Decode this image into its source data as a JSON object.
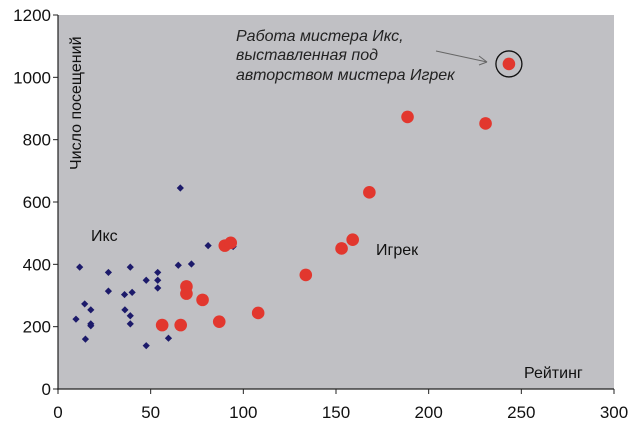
{
  "chart_data": {
    "type": "scatter",
    "xlabel": "Рейтинг",
    "ylabel": "Число посещений",
    "xlim": [
      0,
      300
    ],
    "ylim": [
      0,
      1200
    ],
    "xticks": [
      0,
      50,
      100,
      150,
      200,
      250,
      300
    ],
    "yticks": [
      0,
      200,
      400,
      600,
      800,
      1000,
      1200
    ],
    "grid": false,
    "colors": {
      "background": "#c0c0c4",
      "x_series": "#1c1a6a",
      "y_series": "#e2372e"
    },
    "series": [
      {
        "name": "Икс",
        "marker": "diamond",
        "points": [
          [
            9.7,
            224
          ],
          [
            11.7,
            391
          ],
          [
            14.4,
            273
          ],
          [
            14.8,
            160
          ],
          [
            17.7,
            254
          ],
          [
            17.7,
            209
          ],
          [
            17.7,
            203
          ],
          [
            27.2,
            374
          ],
          [
            27.2,
            314
          ],
          [
            35.9,
            303
          ],
          [
            36.1,
            254
          ],
          [
            39,
            391
          ],
          [
            39,
            235
          ],
          [
            39,
            209
          ],
          [
            40,
            310
          ],
          [
            47.6,
            349
          ],
          [
            47.6,
            139
          ],
          [
            53.8,
            374
          ],
          [
            53.8,
            349
          ],
          [
            53.8,
            324
          ],
          [
            59.6,
            163
          ],
          [
            64.9,
            397
          ],
          [
            66,
            645
          ],
          [
            72,
            401
          ],
          [
            81,
            460
          ],
          [
            94.5,
            457
          ]
        ]
      },
      {
        "name": "Игрек",
        "marker": "circle",
        "points": [
          [
            56.2,
            205
          ],
          [
            66.2,
            205
          ],
          [
            69.3,
            329
          ],
          [
            69.3,
            306
          ],
          [
            78,
            286
          ],
          [
            87,
            216
          ],
          [
            90,
            460
          ],
          [
            93.2,
            469
          ],
          [
            108,
            244
          ],
          [
            133.7,
            366
          ],
          [
            153,
            451
          ],
          [
            159,
            479
          ],
          [
            168,
            631
          ],
          [
            188.6,
            873
          ],
          [
            230.7,
            852
          ],
          [
            243.3,
            1043
          ]
        ]
      }
    ],
    "annotation": {
      "lines": [
        "Работа мистера Икс,",
        "выставленная под",
        "авторством мистера Игрек"
      ],
      "target": [
        243.3,
        1043
      ]
    }
  }
}
